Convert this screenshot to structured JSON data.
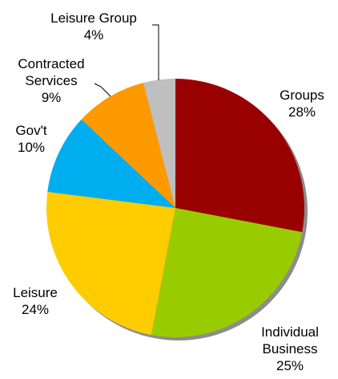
{
  "chart_data": {
    "type": "pie",
    "title": "",
    "start_angle_deg": 0,
    "direction": "clockwise",
    "slices": [
      {
        "name": "Groups",
        "label_lines": [
          "Groups"
        ],
        "value": 28,
        "value_label": "28%",
        "color": "#990000"
      },
      {
        "name": "Individual Business",
        "label_lines": [
          "Individual",
          "Business"
        ],
        "value": 25,
        "value_label": "25%",
        "color": "#99CC00"
      },
      {
        "name": "Leisure",
        "label_lines": [
          "Leisure"
        ],
        "value": 24,
        "value_label": "24%",
        "color": "#FFCC00"
      },
      {
        "name": "Gov't",
        "label_lines": [
          "Gov't"
        ],
        "value": 10,
        "value_label": "10%",
        "color": "#00AEEF"
      },
      {
        "name": "Contracted Services",
        "label_lines": [
          "Contracted",
          "Services"
        ],
        "value": 9,
        "value_label": "9%",
        "color": "#FF9900"
      },
      {
        "name": "Leisure Group",
        "label_lines": [
          "Leisure Group"
        ],
        "value": 4,
        "value_label": "4%",
        "color": "#BFBFBF"
      }
    ],
    "legend": "none",
    "shadow": true
  }
}
